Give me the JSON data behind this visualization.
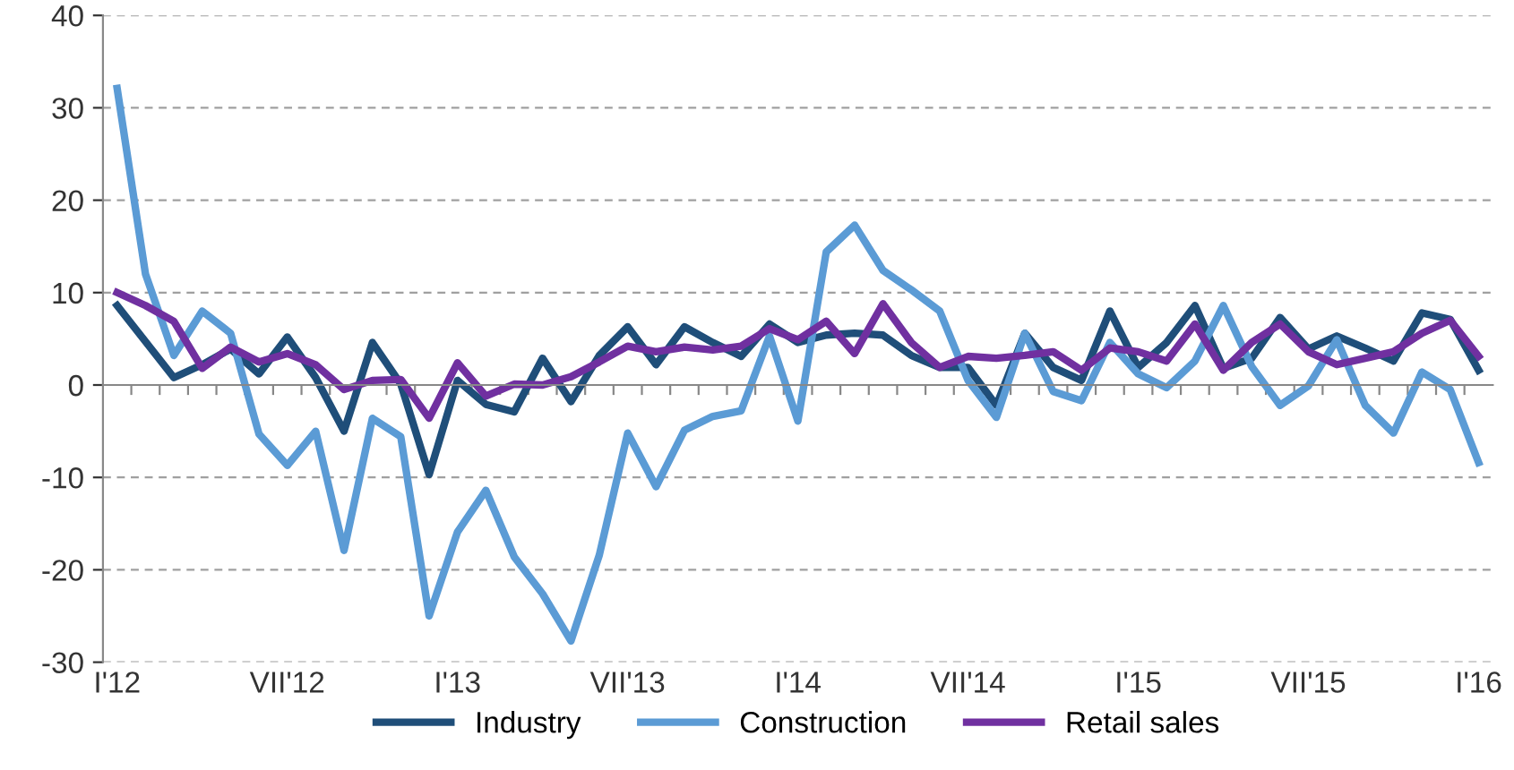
{
  "chart_data": {
    "type": "line",
    "categories": [
      "I'12",
      null,
      null,
      null,
      null,
      null,
      "VII'12",
      null,
      null,
      null,
      null,
      null,
      "I'13",
      null,
      null,
      null,
      null,
      null,
      "VII'13",
      null,
      null,
      null,
      null,
      null,
      "I'14",
      null,
      null,
      null,
      null,
      null,
      "VII'14",
      null,
      null,
      null,
      null,
      null,
      "I'15",
      null,
      null,
      null,
      null,
      null,
      "VII'15",
      null,
      null,
      null,
      null,
      null,
      "I'16"
    ],
    "series": [
      {
        "name": "Industry",
        "color": "#1f4e79",
        "values": [
          8.6,
          4.7,
          0.8,
          2.2,
          3.9,
          1.2,
          5.2,
          0.8,
          -5,
          4.6,
          0.1,
          -9.7,
          0.5,
          -2.1,
          -2.9,
          2.9,
          -1.8,
          3.2,
          6.3,
          2.2,
          6.3,
          4.6,
          3.1,
          6.6,
          4.6,
          5.4,
          5.6,
          5.4,
          3.2,
          1.9,
          1.9,
          -2.2,
          5.6,
          1.9,
          0.5,
          8,
          1.9,
          4.6,
          8.6,
          1.8,
          2.9,
          7.3,
          3.9,
          5.3,
          4,
          2.6,
          7.8,
          7.1,
          1.6
        ]
      },
      {
        "name": "Construction",
        "color": "#5b9bd5",
        "values": [
          32.1,
          12,
          3.2,
          8,
          5.6,
          -5.3,
          -8.7,
          -5,
          -17.9,
          -3.6,
          -5.6,
          -25,
          -15.9,
          -11.4,
          -18.6,
          -22.6,
          -27.7,
          -18.4,
          -5.2,
          -11,
          -4.9,
          -3.4,
          -2.8,
          5.3,
          -3.9,
          14.4,
          17.3,
          12.4,
          10.3,
          8,
          0.5,
          -3.5,
          5.6,
          -0.7,
          -1.7,
          4.6,
          1.2,
          -0.3,
          2.6,
          8.6,
          2,
          -2.2,
          -0.1,
          4.9,
          -2.2,
          -5.2,
          1.4,
          -0.5,
          -8.4
        ]
      },
      {
        "name": "Retail sales",
        "color": "#7030a0",
        "values": [
          10,
          8.6,
          6.9,
          1.8,
          4.1,
          2.5,
          3.4,
          2.2,
          -0.5,
          0.5,
          0.6,
          -3.6,
          2.4,
          -1.2,
          0.1,
          0,
          0.9,
          2.5,
          4.2,
          3.6,
          4.1,
          3.8,
          4.2,
          6.1,
          4.9,
          6.9,
          3.4,
          8.8,
          4.6,
          1.9,
          3.1,
          2.9,
          3.2,
          3.6,
          1.6,
          4,
          3.6,
          2.6,
          6.6,
          1.6,
          4.6,
          6.6,
          3.6,
          2.2,
          2.9,
          3.6,
          5.6,
          7,
          3.1
        ]
      }
    ],
    "ylim": [
      -30,
      40
    ],
    "yticks": [
      -30,
      -20,
      -10,
      0,
      10,
      20,
      30,
      40
    ],
    "grid": "y",
    "legend": "bottom",
    "marker": "none",
    "line_style": "solid"
  }
}
